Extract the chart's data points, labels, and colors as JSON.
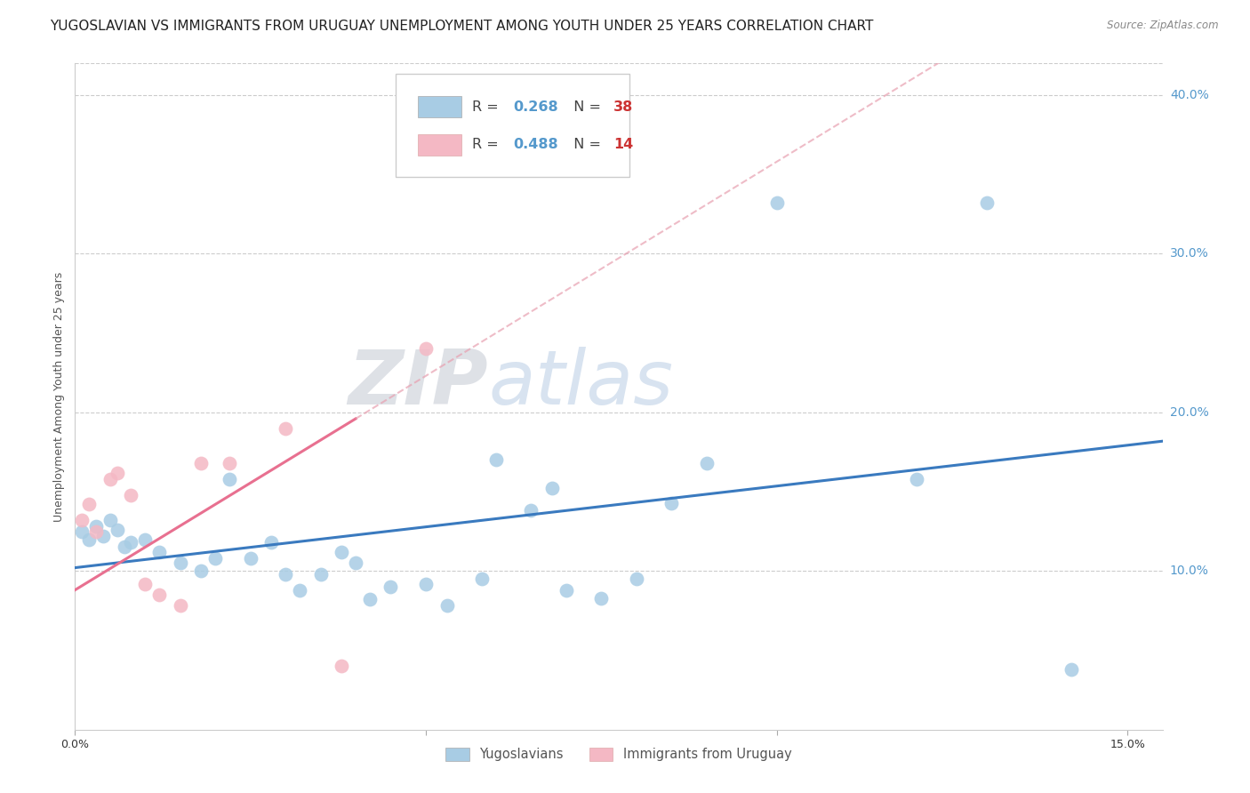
{
  "title": "YUGOSLAVIAN VS IMMIGRANTS FROM URUGUAY UNEMPLOYMENT AMONG YOUTH UNDER 25 YEARS CORRELATION CHART",
  "source": "Source: ZipAtlas.com",
  "ylabel": "Unemployment Among Youth under 25 years",
  "xlim": [
    0.0,
    0.155
  ],
  "ylim": [
    0.0,
    0.42
  ],
  "yticks": [
    0.1,
    0.2,
    0.3,
    0.4
  ],
  "ytick_labels": [
    "10.0%",
    "20.0%",
    "30.0%",
    "40.0%"
  ],
  "xticks": [
    0.0,
    0.05,
    0.1,
    0.15
  ],
  "xtick_labels": [
    "0.0%",
    "",
    "",
    "15.0%"
  ],
  "r_yugoslavians": 0.268,
  "n_yugoslavians": 38,
  "r_uruguay": 0.488,
  "n_uruguay": 14,
  "legend_label_1": "Yugoslavians",
  "legend_label_2": "Immigrants from Uruguay",
  "color_blue": "#a8cce4",
  "color_pink": "#f4b8c4",
  "color_blue_line": "#3a7abf",
  "color_pink_line": "#e87090",
  "color_pink_dash": "#e8a0b0",
  "watermark_zip": "ZIP",
  "watermark_atlas": "atlas",
  "blue_points": [
    [
      0.001,
      0.125
    ],
    [
      0.002,
      0.12
    ],
    [
      0.003,
      0.128
    ],
    [
      0.004,
      0.122
    ],
    [
      0.005,
      0.132
    ],
    [
      0.006,
      0.126
    ],
    [
      0.007,
      0.115
    ],
    [
      0.008,
      0.118
    ],
    [
      0.01,
      0.12
    ],
    [
      0.012,
      0.112
    ],
    [
      0.015,
      0.105
    ],
    [
      0.018,
      0.1
    ],
    [
      0.02,
      0.108
    ],
    [
      0.022,
      0.158
    ],
    [
      0.025,
      0.108
    ],
    [
      0.028,
      0.118
    ],
    [
      0.03,
      0.098
    ],
    [
      0.032,
      0.088
    ],
    [
      0.035,
      0.098
    ],
    [
      0.038,
      0.112
    ],
    [
      0.04,
      0.105
    ],
    [
      0.042,
      0.082
    ],
    [
      0.045,
      0.09
    ],
    [
      0.05,
      0.092
    ],
    [
      0.053,
      0.078
    ],
    [
      0.058,
      0.095
    ],
    [
      0.06,
      0.17
    ],
    [
      0.065,
      0.138
    ],
    [
      0.068,
      0.152
    ],
    [
      0.07,
      0.088
    ],
    [
      0.075,
      0.083
    ],
    [
      0.08,
      0.095
    ],
    [
      0.085,
      0.143
    ],
    [
      0.09,
      0.168
    ],
    [
      0.1,
      0.332
    ],
    [
      0.12,
      0.158
    ],
    [
      0.13,
      0.332
    ],
    [
      0.142,
      0.038
    ]
  ],
  "pink_points": [
    [
      0.001,
      0.132
    ],
    [
      0.002,
      0.142
    ],
    [
      0.003,
      0.125
    ],
    [
      0.005,
      0.158
    ],
    [
      0.006,
      0.162
    ],
    [
      0.008,
      0.148
    ],
    [
      0.01,
      0.092
    ],
    [
      0.012,
      0.085
    ],
    [
      0.015,
      0.078
    ],
    [
      0.018,
      0.168
    ],
    [
      0.022,
      0.168
    ],
    [
      0.03,
      0.19
    ],
    [
      0.038,
      0.04
    ],
    [
      0.05,
      0.24
    ]
  ],
  "bg_color": "#ffffff",
  "grid_color": "#cccccc",
  "title_fontsize": 11,
  "axis_label_fontsize": 9,
  "tick_fontsize": 9,
  "legend_fontsize": 11
}
